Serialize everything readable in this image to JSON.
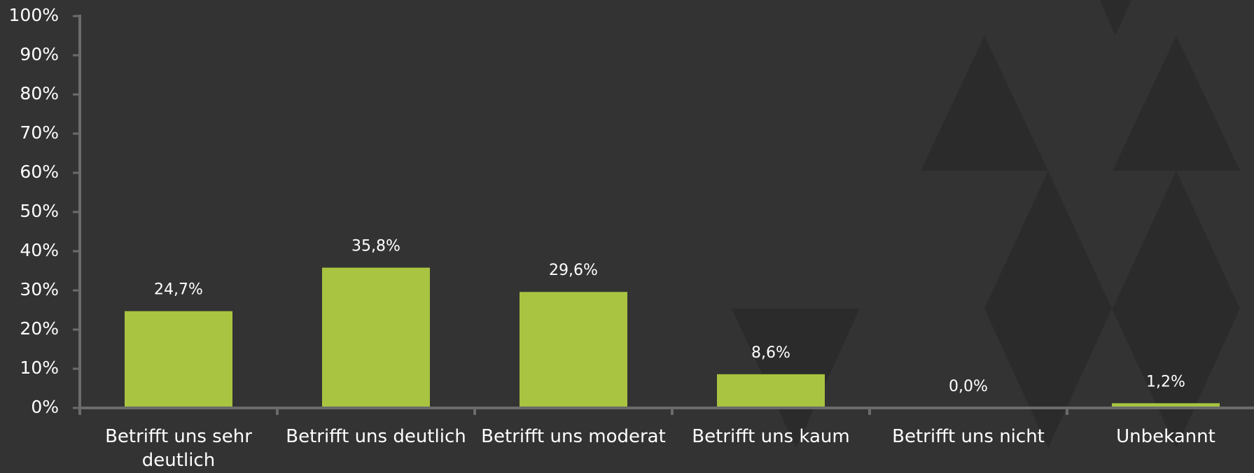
{
  "chart_data": {
    "type": "bar",
    "categories": [
      "Betrifft uns sehr deutlich",
      "Betrifft uns deutlich",
      "Betrifft uns moderat",
      "Betrifft uns kaum",
      "Betrifft uns nicht",
      "Unbekannt"
    ],
    "values": [
      24.7,
      35.8,
      29.6,
      8.6,
      0.0,
      1.2
    ],
    "value_labels": [
      "24,7%",
      "35,8%",
      "29,6%",
      "8,6%",
      "0,0%",
      "1,2%"
    ],
    "color": "#a8c440",
    "ylim": [
      0,
      100
    ],
    "yticks": [
      {
        "value": 0,
        "label": "0%"
      },
      {
        "value": 10,
        "label": "10%"
      },
      {
        "value": 20,
        "label": "20%"
      },
      {
        "value": 30,
        "label": "30%"
      },
      {
        "value": 40,
        "label": "40%"
      },
      {
        "value": 50,
        "label": "50%"
      },
      {
        "value": 60,
        "label": "60%"
      },
      {
        "value": 70,
        "label": "70%"
      },
      {
        "value": 80,
        "label": "80%"
      },
      {
        "value": 90,
        "label": "90%"
      },
      {
        "value": 100,
        "label": "100%"
      }
    ]
  }
}
